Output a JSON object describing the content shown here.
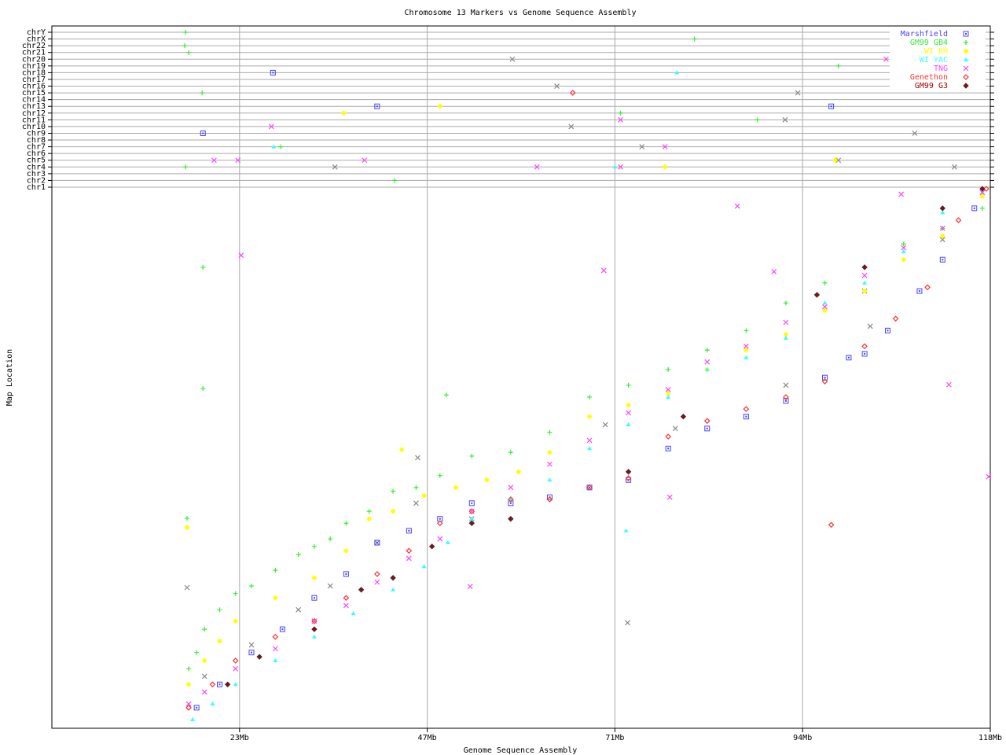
{
  "chart_data": {
    "type": "scatter",
    "title": "Chromosome 13 Markers vs Genome Sequence Assembly",
    "xlabel": "Genome Sequence Assembly",
    "ylabel": "Map Location",
    "xlim": [
      0,
      118
    ],
    "ylim": [
      0,
      100
    ],
    "x_ticks": [
      {
        "value": 23.6,
        "label": "23Mb"
      },
      {
        "value": 47.2,
        "label": "47Mb"
      },
      {
        "value": 70.8,
        "label": "71Mb"
      },
      {
        "value": 94.4,
        "label": "94Mb"
      },
      {
        "value": 118,
        "label": "118Mb"
      }
    ],
    "chromosome_rows": [
      "chr1",
      "chr2",
      "chr3",
      "chr4",
      "chr5",
      "chr6",
      "chr7",
      "chr8",
      "chr9",
      "chr10",
      "chr11",
      "chr12",
      "chr13",
      "chr14",
      "chr15",
      "chr16",
      "chr17",
      "chr18",
      "chr19",
      "chr20",
      "chr21",
      "chr22",
      "chrX",
      "chrY"
    ],
    "grid": true,
    "legend_position": "top-right",
    "series": [
      {
        "color": "#888888",
        "marker": "x",
        "points": [
          [
            19.2,
            9.6
          ],
          [
            25.1,
            15.4
          ],
          [
            31.0,
            21.9
          ],
          [
            35.0,
            26.3
          ],
          [
            40.9,
            34.3
          ],
          [
            45.8,
            41.6
          ],
          [
            52.8,
            38.7
          ],
          [
            69.6,
            56.1
          ],
          [
            78.4,
            55.4
          ],
          [
            92.3,
            63.4
          ],
          [
            102.2,
            80.8
          ],
          [
            112.0,
            90.3
          ],
          [
            17.0,
            26.0
          ],
          [
            72.4,
            19.5
          ],
          [
            46.0,
            50.0
          ],
          [
            102.9,
            74.3
          ]
        ],
        "off_chromosome": [
          [
            57.9,
            "chr20"
          ],
          [
            63.5,
            "chr16"
          ],
          [
            65.3,
            "chr10"
          ],
          [
            74.2,
            "chr7"
          ],
          [
            92.2,
            "chr11"
          ],
          [
            93.8,
            "chr15"
          ],
          [
            108.5,
            "chr9"
          ],
          [
            113.5,
            "chr4"
          ],
          [
            35.6,
            "chr4"
          ],
          [
            98.9,
            "chr5"
          ]
        ]
      },
      {
        "name": "Marshfield",
        "color": "#4444ff",
        "marker": "square",
        "points": [
          [
            18.2,
            3.8
          ],
          [
            21.1,
            8.1
          ],
          [
            25.1,
            14.0
          ],
          [
            29.0,
            18.3
          ],
          [
            33.0,
            24.1
          ],
          [
            37.0,
            28.5
          ],
          [
            40.9,
            34.3
          ],
          [
            44.9,
            36.5
          ],
          [
            48.8,
            38.7
          ],
          [
            52.8,
            41.6
          ],
          [
            57.7,
            41.6
          ],
          [
            62.6,
            42.7
          ],
          [
            67.6,
            44.5
          ],
          [
            72.5,
            45.9
          ],
          [
            77.5,
            51.7
          ],
          [
            82.4,
            55.4
          ],
          [
            87.3,
            57.6
          ],
          [
            92.3,
            60.5
          ],
          [
            97.2,
            64.8
          ],
          [
            100.2,
            68.5
          ],
          [
            102.2,
            69.2
          ],
          [
            105.1,
            73.5
          ],
          [
            109.1,
            80.8
          ],
          [
            112.0,
            86.6
          ],
          [
            116.0,
            96.1
          ]
        ],
        "off_chromosome": [
          [
            27.8,
            "chr18"
          ],
          [
            40.9,
            "chr13"
          ],
          [
            98.0,
            "chr13"
          ],
          [
            19.0,
            "chr9"
          ]
        ]
      },
      {
        "name": "GM99 GB4",
        "color": "#33ee33",
        "marker": "plus",
        "points": [
          [
            17.2,
            11.0
          ],
          [
            18.2,
            14.0
          ],
          [
            19.2,
            18.3
          ],
          [
            21.1,
            21.9
          ],
          [
            23.1,
            24.9
          ],
          [
            25.1,
            26.3
          ],
          [
            28.1,
            29.2
          ],
          [
            31.0,
            32.1
          ],
          [
            33.0,
            33.6
          ],
          [
            35.0,
            35.0
          ],
          [
            37.0,
            37.9
          ],
          [
            39.9,
            40.1
          ],
          [
            42.9,
            43.8
          ],
          [
            45.8,
            44.5
          ],
          [
            48.8,
            46.7
          ],
          [
            52.8,
            50.3
          ],
          [
            57.7,
            51.0
          ],
          [
            62.6,
            54.7
          ],
          [
            67.6,
            61.2
          ],
          [
            72.5,
            63.4
          ],
          [
            77.5,
            66.3
          ],
          [
            82.4,
            69.9
          ],
          [
            87.3,
            73.5
          ],
          [
            92.3,
            78.6
          ],
          [
            97.2,
            82.3
          ],
          [
            102.2,
            85.2
          ],
          [
            107.1,
            89.5
          ],
          [
            112.0,
            92.4
          ],
          [
            117.0,
            96.1
          ],
          [
            19.0,
            85.2
          ],
          [
            19.0,
            62.8
          ],
          [
            17.0,
            38.8
          ],
          [
            49.6,
            61.6
          ]
        ],
        "off_chromosome": [
          [
            16.8,
            "chrY"
          ],
          [
            16.7,
            "chr22"
          ],
          [
            17.2,
            "chr21"
          ],
          [
            18.9,
            "chr15"
          ],
          [
            43.1,
            "chr2"
          ],
          [
            28.8,
            "chr7"
          ],
          [
            71.5,
            "chr12"
          ],
          [
            88.7,
            "chr11"
          ],
          [
            80.8,
            "chrX"
          ],
          [
            98.9,
            "chr19"
          ],
          [
            16.8,
            "chr4"
          ]
        ]
      },
      {
        "name": "WI RH",
        "color": "#ffff00",
        "marker": "star",
        "points": [
          [
            17.2,
            8.1
          ],
          [
            19.2,
            12.5
          ],
          [
            21.1,
            16.1
          ],
          [
            23.1,
            19.8
          ],
          [
            28.1,
            24.1
          ],
          [
            33.0,
            27.8
          ],
          [
            37.0,
            32.8
          ],
          [
            39.9,
            38.7
          ],
          [
            42.9,
            40.1
          ],
          [
            46.8,
            43.0
          ],
          [
            50.8,
            44.5
          ],
          [
            54.7,
            45.9
          ],
          [
            58.7,
            47.4
          ],
          [
            62.6,
            51.0
          ],
          [
            67.6,
            57.6
          ],
          [
            72.5,
            59.7
          ],
          [
            77.5,
            61.9
          ],
          [
            82.4,
            66.3
          ],
          [
            87.3,
            69.9
          ],
          [
            92.3,
            72.8
          ],
          [
            97.2,
            77.2
          ],
          [
            102.2,
            80.8
          ],
          [
            107.1,
            86.6
          ],
          [
            112.0,
            91.0
          ],
          [
            117.0,
            98.3
          ],
          [
            17.0,
            37.1
          ],
          [
            44.0,
            51.5
          ]
        ],
        "off_chromosome": [
          [
            36.7,
            "chr12"
          ],
          [
            48.8,
            "chr13"
          ],
          [
            77.1,
            "chr4"
          ],
          [
            98.5,
            "chr5"
          ]
        ]
      },
      {
        "name": "WI YAC",
        "color": "#33ffff",
        "marker": "triangle",
        "points": [
          [
            17.7,
            1.6
          ],
          [
            20.2,
            4.5
          ],
          [
            23.1,
            8.1
          ],
          [
            28.1,
            12.5
          ],
          [
            33.0,
            16.9
          ],
          [
            37.9,
            21.2
          ],
          [
            42.9,
            25.6
          ],
          [
            46.8,
            29.9
          ],
          [
            49.8,
            34.3
          ],
          [
            52.8,
            38.7
          ],
          [
            57.7,
            42.3
          ],
          [
            62.6,
            45.9
          ],
          [
            67.6,
            51.7
          ],
          [
            72.5,
            56.1
          ],
          [
            77.5,
            61.2
          ],
          [
            82.4,
            66.3
          ],
          [
            87.3,
            68.5
          ],
          [
            92.3,
            72.1
          ],
          [
            97.2,
            78.6
          ],
          [
            102.2,
            82.3
          ],
          [
            107.1,
            88.1
          ],
          [
            112.0,
            95.3
          ],
          [
            117.0,
            99.0
          ],
          [
            72.2,
            36.5
          ]
        ],
        "off_chromosome": [
          [
            78.6,
            "chr18"
          ],
          [
            27.9,
            "chr7"
          ],
          [
            70.8,
            "chr4"
          ]
        ]
      },
      {
        "name": "TNG",
        "color": "#ff44ff",
        "marker": "x",
        "points": [
          [
            17.2,
            4.5
          ],
          [
            19.2,
            6.7
          ],
          [
            23.1,
            11.0
          ],
          [
            28.1,
            14.7
          ],
          [
            33.0,
            19.8
          ],
          [
            37.0,
            22.7
          ],
          [
            40.9,
            27.0
          ],
          [
            44.9,
            31.4
          ],
          [
            48.8,
            35.0
          ],
          [
            52.8,
            40.1
          ],
          [
            57.7,
            44.5
          ],
          [
            62.6,
            48.8
          ],
          [
            67.6,
            53.2
          ],
          [
            72.5,
            58.3
          ],
          [
            77.5,
            62.6
          ],
          [
            82.4,
            67.7
          ],
          [
            87.3,
            70.6
          ],
          [
            92.3,
            75.0
          ],
          [
            97.2,
            77.9
          ],
          [
            102.2,
            83.7
          ],
          [
            107.1,
            88.8
          ],
          [
            112.0,
            92.4
          ],
          [
            117.0,
            99.0
          ],
          [
            23.8,
            87.4
          ],
          [
            69.4,
            84.6
          ],
          [
            86.2,
            96.5
          ],
          [
            112.8,
            63.5
          ],
          [
            117.8,
            46.5
          ],
          [
            52.6,
            26.2
          ],
          [
            77.7,
            42.7
          ],
          [
            90.8,
            84.4
          ],
          [
            106.8,
            98.7
          ]
        ],
        "off_chromosome": [
          [
            104.9,
            "chr20"
          ],
          [
            27.6,
            "chr10"
          ],
          [
            20.4,
            "chr5"
          ],
          [
            23.4,
            "chr5"
          ],
          [
            39.3,
            "chr5"
          ],
          [
            61.0,
            "chr4"
          ],
          [
            71.5,
            "chr11"
          ],
          [
            77.1,
            "chr7"
          ],
          [
            71.5,
            "chr4"
          ]
        ]
      },
      {
        "name": "Genethon",
        "color": "#ff3333",
        "marker": "diamond",
        "points": [
          [
            17.2,
            3.8
          ],
          [
            20.2,
            8.1
          ],
          [
            23.1,
            12.5
          ],
          [
            28.1,
            16.9
          ],
          [
            33.0,
            19.8
          ],
          [
            37.0,
            24.1
          ],
          [
            40.9,
            28.5
          ],
          [
            44.9,
            32.8
          ],
          [
            48.8,
            37.9
          ],
          [
            52.8,
            40.1
          ],
          [
            57.7,
            42.3
          ],
          [
            62.6,
            42.3
          ],
          [
            67.6,
            44.5
          ],
          [
            72.5,
            46.2
          ],
          [
            77.5,
            53.9
          ],
          [
            82.4,
            56.8
          ],
          [
            87.3,
            59.0
          ],
          [
            92.3,
            61.2
          ],
          [
            97.2,
            64.1
          ],
          [
            102.2,
            70.6
          ],
          [
            106.1,
            75.7
          ],
          [
            110.1,
            81.5
          ],
          [
            114.0,
            93.9
          ],
          [
            117.5,
            99.7
          ],
          [
            98.0,
            37.6
          ]
        ],
        "off_chromosome": [
          [
            65.5,
            "chr15"
          ]
        ]
      },
      {
        "name": "GM99 G3",
        "color": "#aa0000",
        "marker": "diamond-filled",
        "points": [
          [
            22.1,
            8.1
          ],
          [
            26.1,
            13.2
          ],
          [
            33.0,
            18.3
          ],
          [
            38.9,
            25.6
          ],
          [
            42.9,
            27.8
          ],
          [
            47.8,
            33.6
          ],
          [
            52.8,
            37.9
          ],
          [
            57.7,
            38.7
          ],
          [
            72.5,
            47.4
          ],
          [
            79.4,
            57.6
          ],
          [
            96.2,
            80.1
          ],
          [
            102.2,
            85.2
          ],
          [
            112.0,
            96.1
          ],
          [
            117.0,
            99.7
          ]
        ],
        "off_chromosome": []
      }
    ]
  }
}
